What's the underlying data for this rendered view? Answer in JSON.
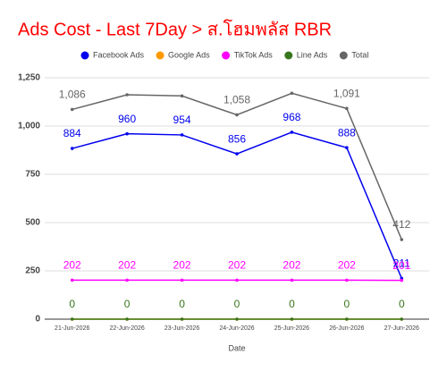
{
  "chart_data": {
    "type": "line",
    "title": "Ads Cost - Last 7Day > ส.โฮมพลัส RBR",
    "x_label": "Date",
    "categories": [
      "21-Jun-2026",
      "22-Jun-2026",
      "23-Jun-2026",
      "24-Jun-2026",
      "25-Jun-2026",
      "26-Jun-2026",
      "27-Jun-2026"
    ],
    "series": [
      {
        "name": "Facebook Ads",
        "color": "#0000ee",
        "values": [
          884,
          960,
          954,
          856,
          968,
          888,
          211
        ]
      },
      {
        "name": "Google Ads",
        "color": "#ff9900",
        "values": [
          0,
          0,
          0,
          0,
          0,
          0,
          0
        ],
        "show_labels": false
      },
      {
        "name": "TikTok Ads",
        "color": "#ff00ff",
        "values": [
          202,
          202,
          202,
          202,
          202,
          202,
          201
        ]
      },
      {
        "name": "Line Ads",
        "color": "#38761d",
        "values": [
          0,
          0,
          0,
          0,
          0,
          0,
          0
        ]
      },
      {
        "name": "Total",
        "color": "#666666",
        "values": [
          1086,
          1162,
          1156,
          1058,
          1170,
          1091,
          412
        ],
        "value_labels": [
          "1,086",
          null,
          null,
          "1,058",
          null,
          "1,091",
          "412"
        ]
      }
    ],
    "ylim": [
      0,
      1250
    ],
    "yticks": [
      0,
      250,
      500,
      750,
      {
        "value": 1000,
        "label": "1,000"
      },
      {
        "value": 1250,
        "label": "1,250"
      }
    ],
    "grid": true,
    "legend": "top"
  }
}
